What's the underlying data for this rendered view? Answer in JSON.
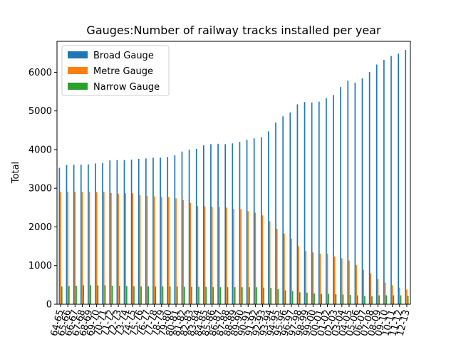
{
  "chart_data": {
    "type": "bar",
    "title": "Gauges:Number of railway tracks installed per year",
    "xlabel": "",
    "ylabel": "Total",
    "ylim": [
      0,
      6800
    ],
    "yticks": [
      0,
      1000,
      2000,
      3000,
      4000,
      5000,
      6000
    ],
    "grid": false,
    "legend_position": "top-left",
    "categories": [
      "64-65",
      "65-66",
      "66-67",
      "67-68",
      "68-69",
      "69-70",
      "70-71",
      "71-72",
      "72-73",
      "73-74",
      "74-75",
      "75-76",
      "76-77",
      "77-78",
      "78-79",
      "79-80",
      "80-81",
      "81-82",
      "82-83",
      "83-84",
      "84-85",
      "85-86",
      "86-87",
      "87-88",
      "88-89",
      "89-90",
      "90-91",
      "91-92",
      "92-93",
      "93-94",
      "94-95",
      "95-96",
      "96-97",
      "97-98",
      "98-99",
      "99-00",
      "00-01",
      "01-02",
      "02-03",
      "03-04",
      "04-05",
      "05-06",
      "06-07",
      "07-08",
      "08-09",
      "09-10",
      "10-11",
      "11-12",
      "12-13"
    ],
    "series": [
      {
        "name": "Broad Gauge",
        "color": "#1f77b4",
        "values": [
          3530,
          3600,
          3610,
          3610,
          3620,
          3640,
          3650,
          3720,
          3730,
          3730,
          3740,
          3760,
          3770,
          3790,
          3790,
          3810,
          3850,
          3950,
          4000,
          4020,
          4110,
          4140,
          4150,
          4140,
          4160,
          4200,
          4250,
          4290,
          4320,
          4470,
          4700,
          4860,
          4960,
          5170,
          5230,
          5220,
          5240,
          5330,
          5410,
          5620,
          5780,
          5730,
          5840,
          6010,
          6200,
          6320,
          6420,
          6480,
          6580
        ]
      },
      {
        "name": "Metre Gauge",
        "color": "#ff7f0e",
        "values": [
          2900,
          2910,
          2910,
          2900,
          2910,
          2900,
          2910,
          2880,
          2860,
          2870,
          2870,
          2820,
          2800,
          2790,
          2780,
          2770,
          2740,
          2690,
          2620,
          2540,
          2530,
          2520,
          2510,
          2500,
          2470,
          2460,
          2410,
          2370,
          2300,
          2150,
          1950,
          1830,
          1700,
          1500,
          1380,
          1340,
          1310,
          1310,
          1230,
          1190,
          1130,
          1010,
          890,
          800,
          650,
          560,
          490,
          430,
          380
        ]
      },
      {
        "name": "Narrow Gauge",
        "color": "#2ca02c",
        "values": [
          460,
          470,
          480,
          490,
          490,
          490,
          490,
          480,
          480,
          470,
          470,
          460,
          460,
          460,
          460,
          460,
          460,
          450,
          450,
          450,
          450,
          440,
          440,
          440,
          440,
          440,
          440,
          440,
          430,
          420,
          390,
          360,
          340,
          310,
          300,
          280,
          270,
          270,
          260,
          250,
          240,
          230,
          210,
          210,
          230,
          230,
          230,
          230,
          220
        ]
      }
    ]
  }
}
